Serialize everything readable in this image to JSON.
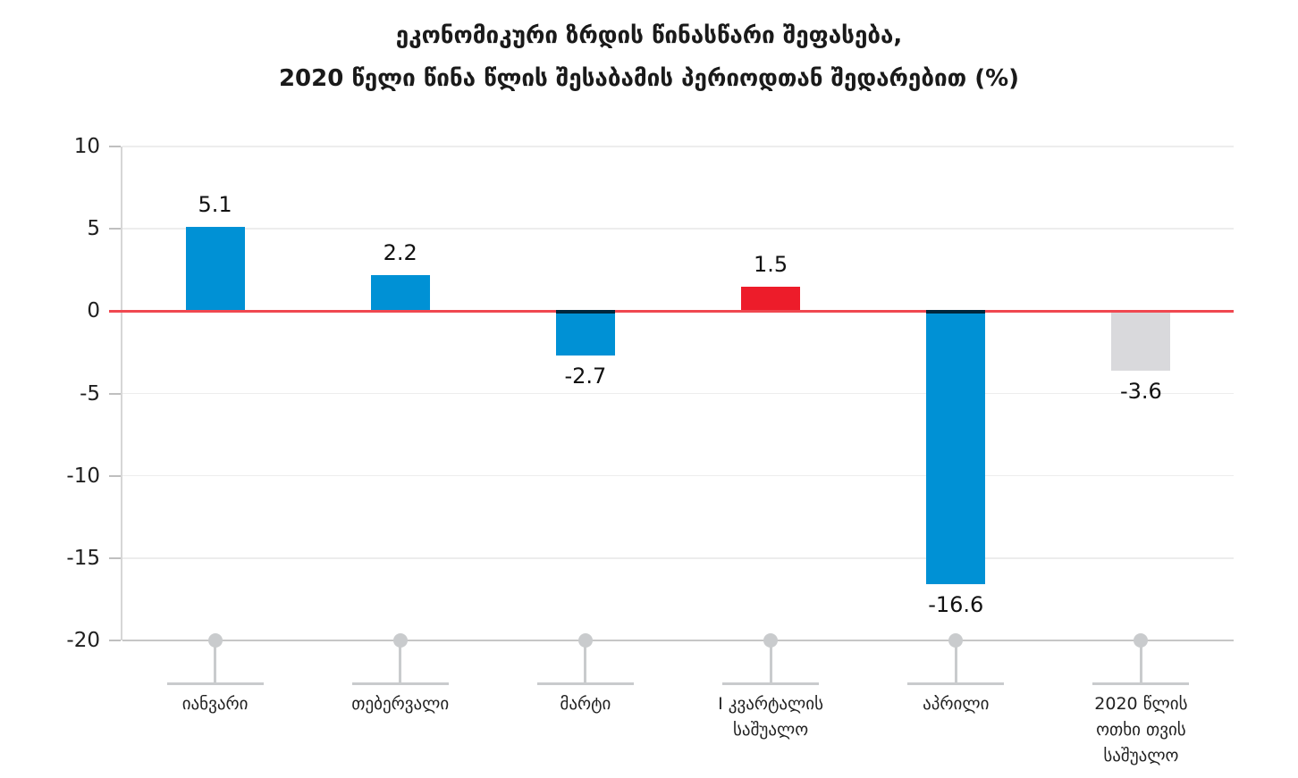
{
  "title": {
    "line1": "ეკონომიკური ზრდის წინასწარი შეფასება,",
    "line2": "2020 წელი წინა წლის შესაბამის პერიოდთან შედარებით (%)"
  },
  "chart_data": {
    "type": "bar",
    "title": "ეკონომიკური ზრდის წინასწარი შეფასება, 2020 წელი წინა წლის შესაბამის პერიოდთან შედარებით (%)",
    "categories": [
      "იანვარი",
      "თებერვალი",
      "მარტი",
      "I კვარტალის საშუალო",
      "აპრილი",
      "2020 წლის ოთხი თვის საშუალო"
    ],
    "categories_lines": [
      [
        "იანვარი"
      ],
      [
        "თებერვალი"
      ],
      [
        "მარტი"
      ],
      [
        "I კვარტალის",
        "საშუალო"
      ],
      [
        "აპრილი"
      ],
      [
        "2020 წლის",
        "ოთხი თვის",
        "საშუალო"
      ]
    ],
    "values": [
      5.1,
      2.2,
      -2.7,
      1.5,
      -16.6,
      -3.6
    ],
    "value_labels": [
      "5.1",
      "2.2",
      "-2.7",
      "1.5",
      "-16.6",
      "-3.6"
    ],
    "bar_colors": [
      "#0091d5",
      "#0091d5",
      "#0091d5",
      "#ed1c2a",
      "#0091d5",
      "#d9d9dc"
    ],
    "yticks": [
      10,
      5,
      0,
      -5,
      -10,
      -15,
      -20
    ],
    "ylim": [
      -20,
      10
    ],
    "xlabel": "",
    "ylabel": "",
    "grid": true,
    "legend": false,
    "colors": {
      "accent_blue": "#0091d5",
      "accent_red": "#ed1c2a",
      "neutral_gray_bar": "#d9d9dc",
      "zero_line": "#f04850",
      "negative_bar_cap": "#00263c",
      "gridline": "#ededed",
      "axis_line": "#d6d6d6",
      "baseline": "#c6c6c6",
      "tick": "#bfbfbf",
      "category_marker": "#c9cbcd"
    }
  }
}
